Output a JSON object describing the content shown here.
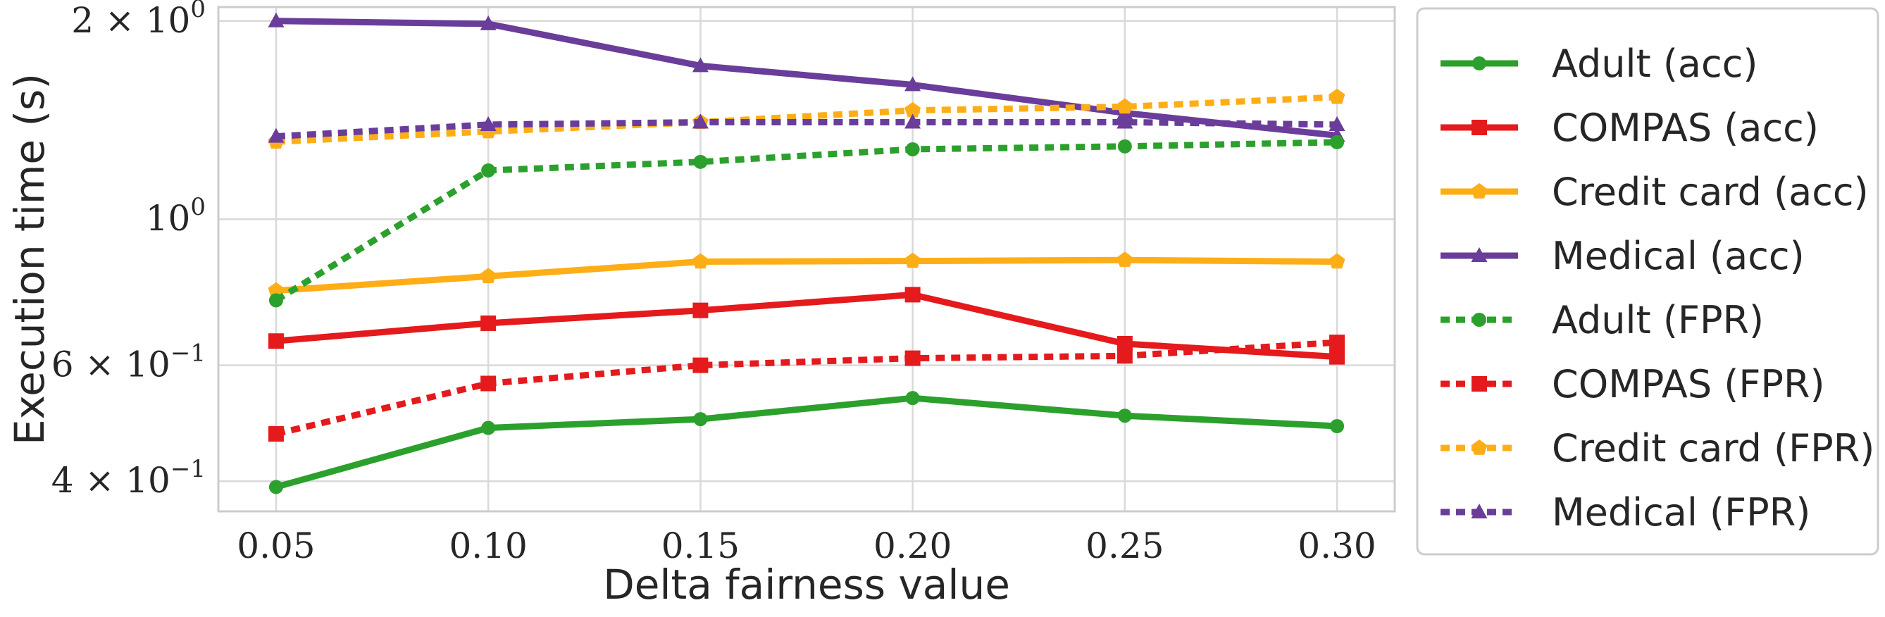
{
  "chart_data": {
    "type": "line",
    "xlabel": "Delta fairness value",
    "ylabel": "Execution time (s)",
    "x": [
      0.05,
      0.1,
      0.15,
      0.2,
      0.25,
      0.3
    ],
    "x_tick_labels": [
      "0.05",
      "0.10",
      "0.15",
      "0.20",
      "0.25",
      "0.30"
    ],
    "y_scale": "log",
    "ylim": [
      0.36,
      2.1
    ],
    "y_ticks": [
      {
        "value": 0.4,
        "mantissa": "4",
        "exp": "−1"
      },
      {
        "value": 0.6,
        "mantissa": "6",
        "exp": "−1"
      },
      {
        "value": 1.0,
        "mantissa": "",
        "exp": "0"
      },
      {
        "value": 2.0,
        "mantissa": "2",
        "exp": "0"
      }
    ],
    "grid": true,
    "legend_position": "right, outside plot",
    "series": [
      {
        "name": "Adult (acc)",
        "color": "#2ca02c",
        "dash": "solid",
        "marker": "circle",
        "values": [
          0.392,
          0.482,
          0.497,
          0.535,
          0.503,
          0.485
        ]
      },
      {
        "name": "COMPAS (acc)",
        "color": "#e41a1c",
        "dash": "solid",
        "marker": "square",
        "values": [
          0.653,
          0.695,
          0.727,
          0.768,
          0.647,
          0.618
        ]
      },
      {
        "name": "Credit card (acc)",
        "color": "#fdae17",
        "dash": "solid",
        "marker": "pentagon",
        "values": [
          0.779,
          0.819,
          0.862,
          0.864,
          0.867,
          0.862
        ]
      },
      {
        "name": "Medical (acc)",
        "color": "#6a3d9a",
        "dash": "solid",
        "marker": "triangle",
        "values": [
          2.0,
          1.98,
          1.71,
          1.6,
          1.45,
          1.34
        ]
      },
      {
        "name": "Adult (FPR)",
        "color": "#2ca02c",
        "dash": "dotted",
        "marker": "circle",
        "values": [
          0.753,
          1.186,
          1.222,
          1.277,
          1.29,
          1.309
        ]
      },
      {
        "name": "COMPAS (FPR)",
        "color": "#e41a1c",
        "dash": "dotted",
        "marker": "square",
        "values": [
          0.472,
          0.563,
          0.6,
          0.615,
          0.62,
          0.65
        ]
      },
      {
        "name": "Credit card (FPR)",
        "color": "#fdae17",
        "dash": "dotted",
        "marker": "pentagon",
        "values": [
          1.311,
          1.359,
          1.404,
          1.463,
          1.482,
          1.533
        ]
      },
      {
        "name": "Medical (FPR)",
        "color": "#6a3d9a",
        "dash": "dotted",
        "marker": "triangle",
        "values": [
          1.336,
          1.392,
          1.404,
          1.404,
          1.404,
          1.392
        ]
      }
    ]
  }
}
